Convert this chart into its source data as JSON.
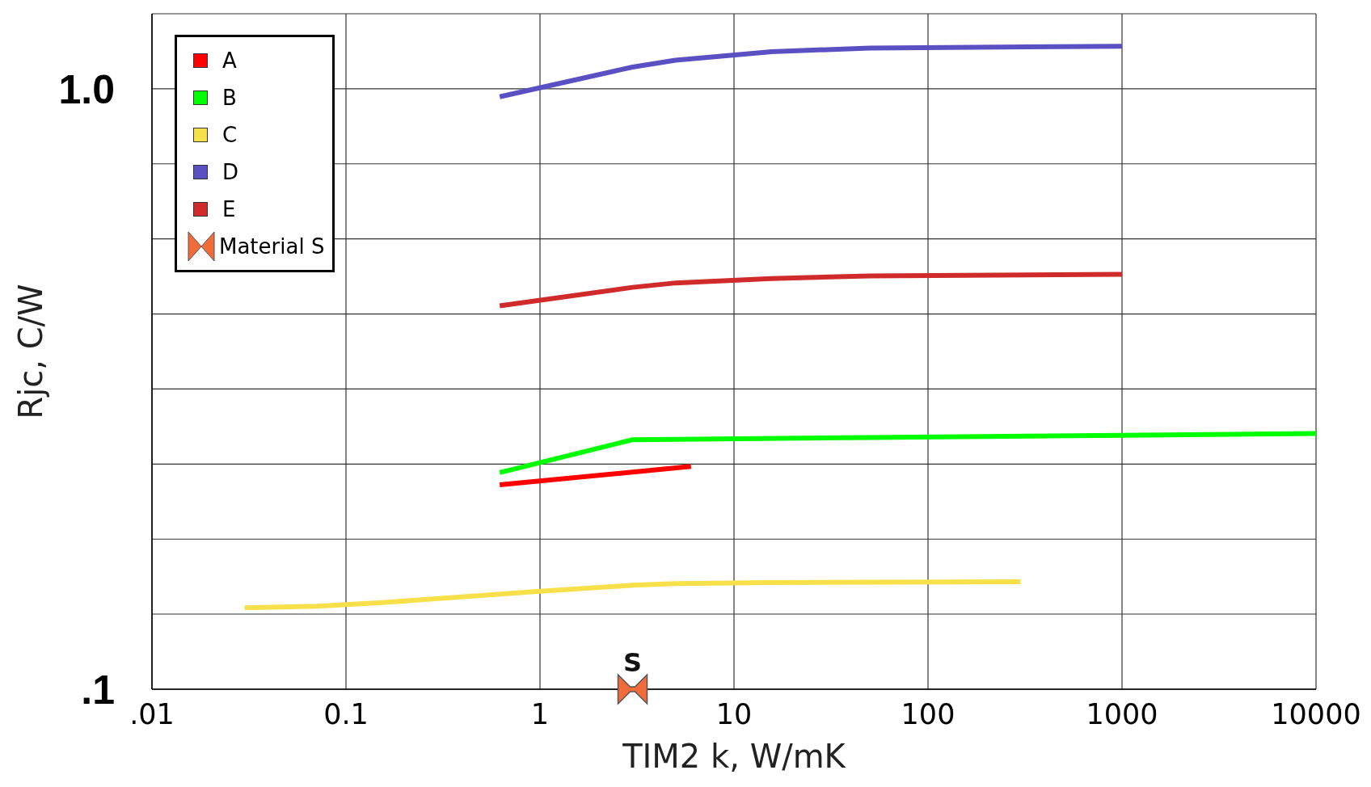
{
  "chart_data": {
    "type": "line",
    "xlabel": "TIM2 k, W/mK",
    "ylabel": "Rjc, C/W",
    "log": "xy",
    "grid": true,
    "legend": "top left",
    "marker": "none",
    "line_style": "solid",
    "xlim": [
      0.01,
      10000
    ],
    "xticks": [
      {
        "value": 0.01,
        "label": ".01"
      },
      0.1,
      1,
      10,
      100,
      1000,
      10000
    ],
    "ylim": [
      0.1,
      1.3335
    ],
    "yticks": [
      {
        "value": 0.1,
        "label": ".1"
      },
      {
        "value": 0.1334,
        "label": null
      },
      {
        "value": 0.1778,
        "label": null
      },
      {
        "value": 0.2371,
        "label": null
      },
      {
        "value": 0.3162,
        "label": null
      },
      {
        "value": 0.4217,
        "label": null
      },
      {
        "value": 0.5623,
        "label": null
      },
      {
        "value": 0.7499,
        "label": null
      },
      {
        "value": 1,
        "label": "1.0"
      },
      {
        "value": 1.3335,
        "label": null
      }
    ],
    "series": [
      {
        "name": "A",
        "color": "#ff0000",
        "x": [
          0.62,
          3,
          6
        ],
        "values": [
          0.219,
          0.23,
          0.235
        ]
      },
      {
        "name": "B",
        "color": "#00ff00",
        "x": [
          0.62,
          3,
          1000,
          10000
        ],
        "values": [
          0.2295,
          0.2604,
          0.2648,
          0.2666
        ]
      },
      {
        "name": "C",
        "color": "#f8e04a",
        "x": [
          0.03,
          0.071,
          0.154,
          1,
          3,
          5,
          15,
          300
        ],
        "values": [
          0.1366,
          0.1375,
          0.1394,
          0.1456,
          0.149,
          0.15,
          0.1505,
          0.151
        ]
      },
      {
        "name": "D",
        "color": "#5b4fc4",
        "x": [
          0.62,
          3,
          5,
          15.6,
          50,
          1000
        ],
        "values": [
          0.97,
          1.087,
          1.116,
          1.153,
          1.169,
          1.177
        ]
      },
      {
        "name": "E",
        "color": "#d02a2a",
        "x": [
          0.62,
          3,
          5,
          15.6,
          50,
          1000
        ],
        "values": [
          0.435,
          0.467,
          0.475,
          0.483,
          0.488,
          0.491
        ]
      },
      {
        "name": "Material S",
        "type": "scatter",
        "color": "#f26b3a",
        "x": [
          3
        ],
        "values": [
          0.1
        ]
      }
    ],
    "annotations": [
      {
        "text": "S",
        "x": 3,
        "y": 0.1
      }
    ]
  }
}
